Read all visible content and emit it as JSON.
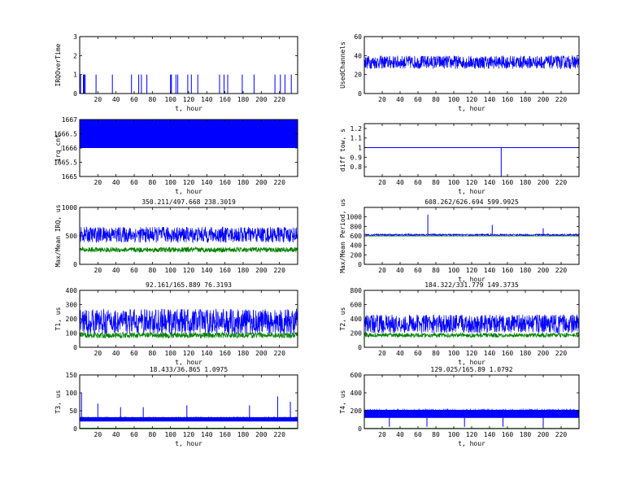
{
  "chart_data": [
    {
      "type": "line",
      "xlabel": "t, hour",
      "ylabel": "IRQOverTime",
      "xlim": [
        0,
        240
      ],
      "ylim": [
        0,
        3
      ],
      "yticks": [
        "0",
        "1",
        "2",
        "3"
      ],
      "series": [
        {
          "pattern": "spikes",
          "color": "#0000ff",
          "base": 0,
          "spike": 1,
          "density": 0.04
        }
      ]
    },
    {
      "type": "line",
      "xlabel": "t, hour",
      "ylabel": "UsedChannels",
      "xlim": [
        0,
        240
      ],
      "ylim": [
        0,
        60
      ],
      "yticks": [
        "0",
        "20",
        "40",
        "60"
      ],
      "series": [
        {
          "pattern": "noise",
          "color": "#0000ff",
          "mean": 33,
          "amp": 7
        }
      ]
    },
    {
      "type": "area",
      "xlabel": "t, hour",
      "ylabel": "irq_cnt",
      "xlim": [
        0,
        240
      ],
      "ylim": [
        1665,
        1667
      ],
      "yticks": [
        "1665",
        "1665.5",
        "1666",
        "1666.5",
        "1667"
      ],
      "series": [
        {
          "pattern": "band",
          "color": "#0000ff",
          "low": 1666,
          "high": 1667
        }
      ]
    },
    {
      "type": "line",
      "xlabel": "t, hour",
      "ylabel": "diff tow, s",
      "xlim": [
        0,
        240
      ],
      "ylim": [
        0.7,
        1.25
      ],
      "yticks": [
        "0.8",
        "0.9",
        "1",
        "1.1",
        "1.2"
      ],
      "series": [
        {
          "pattern": "flat-dip",
          "color": "#0000ff",
          "level": 1,
          "dip_x": 153,
          "dip_y": 0.7
        }
      ]
    },
    {
      "type": "line",
      "title": "350.211/497.668  238.3019",
      "xlabel": "",
      "ylabel": "Max/Mean IRQ, us",
      "xlim": [
        0,
        240
      ],
      "ylim": [
        0,
        1000
      ],
      "yticks": [
        "0",
        "500",
        "1000"
      ],
      "series": [
        {
          "pattern": "noise",
          "color": "#0000ff",
          "mean": 520,
          "amp": 140
        },
        {
          "pattern": "noise",
          "color": "#008000",
          "mean": 255,
          "amp": 45
        }
      ]
    },
    {
      "type": "line",
      "title": "608.262/626.694  599.9925",
      "xlabel": "t, hour",
      "ylabel": "Max/Mean Period, us",
      "xlim": [
        0,
        240
      ],
      "ylim": [
        0,
        1200
      ],
      "yticks": [
        "0",
        "200",
        "400",
        "600",
        "800",
        "1000"
      ],
      "series": [
        {
          "pattern": "noise",
          "color": "#0000ff",
          "mean": 620,
          "amp": 20,
          "peaks": [
            [
              71,
              1050
            ],
            [
              143,
              830
            ],
            [
              200,
              760
            ]
          ]
        },
        {
          "pattern": "noise",
          "color": "#008000",
          "mean": 598,
          "amp": 3
        }
      ]
    },
    {
      "type": "line",
      "title": "92.161/165.889  76.3193",
      "xlabel": "t, hour",
      "ylabel": "T1, us",
      "xlim": [
        0,
        240
      ],
      "ylim": [
        0,
        400
      ],
      "yticks": [
        "0",
        "100",
        "200",
        "300",
        "400"
      ],
      "series": [
        {
          "pattern": "noise",
          "color": "#0000ff",
          "mean": 180,
          "amp": 90
        },
        {
          "pattern": "noise",
          "color": "#008000",
          "mean": 85,
          "amp": 20
        }
      ]
    },
    {
      "type": "line",
      "title": "184.322/331.779  149.3735",
      "xlabel": "t, hour",
      "ylabel": "T2, us",
      "xlim": [
        0,
        240
      ],
      "ylim": [
        0,
        800
      ],
      "yticks": [
        "0",
        "200",
        "400",
        "600",
        "800"
      ],
      "series": [
        {
          "pattern": "noise",
          "color": "#0000ff",
          "mean": 330,
          "amp": 130
        },
        {
          "pattern": "noise",
          "color": "#008000",
          "mean": 170,
          "amp": 30
        }
      ]
    },
    {
      "type": "line",
      "title": "18.433/36.865  1.0975",
      "xlabel": "t, hour",
      "ylabel": "T3, us",
      "xlim": [
        0,
        240
      ],
      "ylim": [
        0,
        150
      ],
      "yticks": [
        "0",
        "50",
        "100",
        "150"
      ],
      "series": [
        {
          "pattern": "band",
          "color": "#0000ff",
          "low": 20,
          "high": 32,
          "spikes": [
            [
              2,
              100
            ],
            [
              20,
              70
            ],
            [
              45,
              60
            ],
            [
              70,
              60
            ],
            [
              118,
              65
            ],
            [
              187,
              65
            ],
            [
              218,
              90
            ],
            [
              232,
              75
            ]
          ]
        },
        {
          "pattern": "flat",
          "color": "#008000",
          "level": 1
        }
      ]
    },
    {
      "type": "line",
      "title": "129.025/165.89  1.0792",
      "xlabel": "t, hour",
      "ylabel": "T4, us",
      "xlim": [
        0,
        240
      ],
      "ylim": [
        0,
        600
      ],
      "yticks": [
        "0",
        "200",
        "400",
        "600"
      ],
      "series": [
        {
          "pattern": "band",
          "color": "#0000ff",
          "low": 120,
          "high": 210,
          "spikes": [
            [
              28,
              20
            ],
            [
              70,
              20
            ],
            [
              112,
              20
            ],
            [
              155,
              20
            ],
            [
              200,
              20
            ]
          ]
        },
        {
          "pattern": "flat",
          "color": "#008000",
          "level": 1
        }
      ]
    }
  ],
  "xticks": [
    "20",
    "40",
    "60",
    "80",
    "100",
    "120",
    "140",
    "160",
    "180",
    "200",
    "220"
  ]
}
